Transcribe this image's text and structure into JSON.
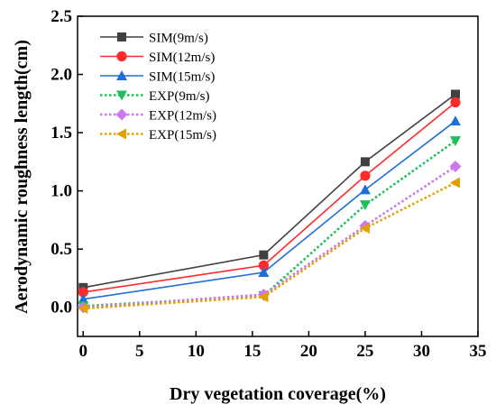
{
  "chart_data": {
    "type": "line",
    "title": "",
    "xlabel": "Dry vegetation coverage(%)",
    "ylabel": "Aerodynamic roughness length(cm)",
    "xlim": [
      -0.5,
      35
    ],
    "ylim": [
      -0.25,
      2.5
    ],
    "xticks": [
      0,
      5,
      10,
      15,
      20,
      25,
      30,
      35
    ],
    "yticks": [
      0.0,
      0.5,
      1.0,
      1.5,
      2.0,
      2.5
    ],
    "ytick_labels": [
      "0.0",
      "0.5",
      "1.0",
      "1.5",
      "2.0",
      "2.5"
    ],
    "grid": false,
    "legend_position": "top-left",
    "x": [
      0,
      16,
      25,
      33
    ],
    "series": [
      {
        "name": "SIM(9m/s)",
        "values": [
          0.17,
          0.45,
          1.25,
          1.83
        ],
        "color": "#404040",
        "marker": "square",
        "dashed": false
      },
      {
        "name": "SIM(12m/s)",
        "values": [
          0.13,
          0.36,
          1.13,
          1.76
        ],
        "color": "#ff2a2a",
        "marker": "circle",
        "dashed": false
      },
      {
        "name": "SIM(15m/s)",
        "values": [
          0.07,
          0.3,
          1.01,
          1.6
        ],
        "color": "#1f6fd6",
        "marker": "triangle-up",
        "dashed": false
      },
      {
        "name": "EXP(9m/s)",
        "values": [
          0.01,
          0.1,
          0.88,
          1.43
        ],
        "color": "#1ec05a",
        "marker": "triangle-down",
        "dashed": true
      },
      {
        "name": "EXP(12m/s)",
        "values": [
          0.0,
          0.11,
          0.7,
          1.21
        ],
        "color": "#cc77ee",
        "marker": "diamond",
        "dashed": true
      },
      {
        "name": "EXP(15m/s)",
        "values": [
          -0.01,
          0.09,
          0.68,
          1.07
        ],
        "color": "#e0a000",
        "marker": "triangle-left",
        "dashed": true
      }
    ]
  }
}
